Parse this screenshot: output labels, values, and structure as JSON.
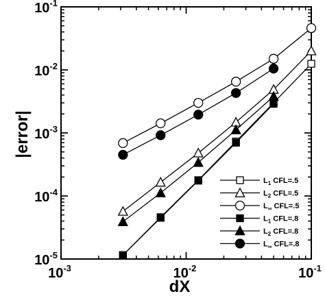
{
  "chart_data": {
    "type": "line",
    "xscale": "log",
    "yscale": "log",
    "xlabel": "dX",
    "ylabel": "|error|",
    "xlim": [
      0.001,
      0.1
    ],
    "ylim": [
      1e-05,
      0.1
    ],
    "x_ticks": [
      {
        "value": 0.001,
        "base": "10",
        "exp": "-3"
      },
      {
        "value": 0.01,
        "base": "10",
        "exp": "-2"
      },
      {
        "value": 0.1,
        "base": "10",
        "exp": "-1"
      }
    ],
    "y_ticks": [
      {
        "value": 1e-05,
        "base": "10",
        "exp": "-5"
      },
      {
        "value": 0.0001,
        "base": "10",
        "exp": "-4"
      },
      {
        "value": 0.001,
        "base": "10",
        "exp": "-3"
      },
      {
        "value": 0.01,
        "base": "10",
        "exp": "-2"
      },
      {
        "value": 0.1,
        "base": "10",
        "exp": "-1"
      }
    ],
    "grid": false,
    "legend_position": "lower-right",
    "series": [
      {
        "name": "L1 CFL=.5",
        "norm": "L",
        "sub": "1",
        "suffix": " CFL=.5",
        "marker": "square",
        "filled": false,
        "color": "#000000",
        "x": [
          0.003125,
          0.00625,
          0.0125,
          0.025,
          0.05,
          0.1
        ],
        "y": [
          1.15e-05,
          4.6e-05,
          0.000178,
          0.00073,
          0.003,
          0.0125
        ]
      },
      {
        "name": "L2 CFL=.5",
        "norm": "L",
        "sub": "2",
        "suffix": " CFL=.5",
        "marker": "triangle",
        "filled": false,
        "color": "#000000",
        "x": [
          0.003125,
          0.00625,
          0.0125,
          0.025,
          0.05,
          0.1
        ],
        "y": [
          5.7e-05,
          0.000165,
          0.00048,
          0.00148,
          0.0049,
          0.02
        ]
      },
      {
        "name": "L∞ CFL=.5",
        "norm": "L",
        "sub": "∞",
        "suffix": " CFL=.5",
        "marker": "circle",
        "filled": false,
        "color": "#000000",
        "x": [
          0.003125,
          0.00625,
          0.0125,
          0.025,
          0.05,
          0.1
        ],
        "y": [
          0.00069,
          0.00142,
          0.003,
          0.0065,
          0.015,
          0.046
        ]
      },
      {
        "name": "L1 CFL=.8",
        "norm": "L",
        "sub": "1",
        "suffix": " CFL=.8",
        "marker": "square",
        "filled": true,
        "color": "#000000",
        "x": [
          0.003125,
          0.00625,
          0.0125,
          0.025,
          0.05
        ],
        "y": [
          1.15e-05,
          4.5e-05,
          0.000175,
          0.0007,
          0.0029
        ]
      },
      {
        "name": "L2 CFL=.8",
        "norm": "L",
        "sub": "2",
        "suffix": " CFL=.8",
        "marker": "triangle",
        "filled": true,
        "color": "#000000",
        "x": [
          0.003125,
          0.00625,
          0.0125,
          0.025,
          0.05
        ],
        "y": [
          3.9e-05,
          0.000112,
          0.00034,
          0.00112,
          0.0038
        ]
      },
      {
        "name": "L∞ CFL=.8",
        "norm": "L",
        "sub": "∞",
        "suffix": " CFL=.8",
        "marker": "circle",
        "filled": true,
        "color": "#000000",
        "x": [
          0.003125,
          0.00625,
          0.0125,
          0.025,
          0.05
        ],
        "y": [
          0.00045,
          0.00092,
          0.00195,
          0.0043,
          0.0105
        ]
      }
    ]
  }
}
